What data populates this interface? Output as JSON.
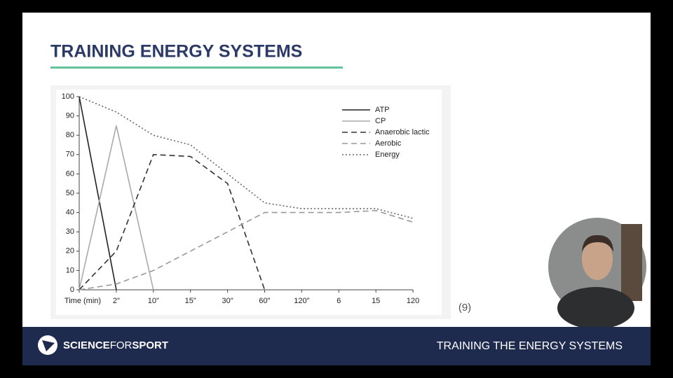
{
  "slide": {
    "title": "TRAINING ENERGY SYSTEMS"
  },
  "footer": {
    "brand_parts": [
      "SCIENCE",
      "FOR",
      "SPORT"
    ],
    "caption": "TRAINING THE ENERGY SYSTEMS"
  },
  "chart_data": {
    "type": "line",
    "xlabel": "Time (min)",
    "categories": [
      null,
      "2\"",
      "10\"",
      "15\"",
      "30\"",
      "60\"",
      "120\"",
      "6",
      "15",
      "120"
    ],
    "ylim": [
      0,
      100
    ],
    "yticks": [
      0,
      10,
      20,
      30,
      40,
      50,
      60,
      70,
      80,
      90,
      100
    ],
    "annotations": [
      "(9)"
    ],
    "series": [
      {
        "name": "ATP",
        "color": "#222222",
        "style": "solid",
        "values": [
          100,
          0,
          null,
          null,
          null,
          null,
          null,
          null,
          null,
          null
        ]
      },
      {
        "name": "CP",
        "color": "#aaaaaa",
        "style": "solid",
        "values": [
          0,
          85,
          0,
          null,
          null,
          null,
          null,
          null,
          null,
          null
        ]
      },
      {
        "name": "Anaerobic lactic",
        "color": "#333333",
        "style": "dashed",
        "values": [
          0,
          20,
          70,
          69,
          55,
          0,
          null,
          null,
          null,
          null
        ]
      },
      {
        "name": "Aerobic",
        "color": "#999999",
        "style": "dashed",
        "values": [
          0,
          3,
          10,
          20,
          30,
          40,
          40,
          40,
          41,
          35
        ]
      },
      {
        "name": "Energy",
        "color": "#666666",
        "style": "dotted",
        "values": [
          100,
          92,
          80,
          75,
          60,
          45,
          42,
          42,
          42,
          37
        ]
      }
    ]
  }
}
